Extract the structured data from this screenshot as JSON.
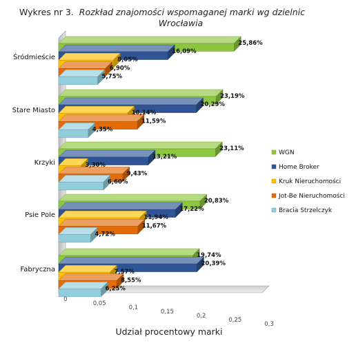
{
  "chart_data": {
    "type": "bar",
    "orientation": "horizontal",
    "three_d": true,
    "title_prefix": "Wykres nr 3.",
    "title_line1": "Rozkład znajomości wspomaganej marki wg dzielnic",
    "title_line2": "Wrocławia",
    "xlabel": "Udział procentowy marki",
    "ylabel": "",
    "xlim": [
      0,
      0.3
    ],
    "xticks": [
      "0",
      "0,05",
      "0,1",
      "0,15",
      "0,2",
      "0,25",
      "0,3"
    ],
    "legend_position": "right",
    "categories": [
      "Śródmieście",
      "Stare Miasto",
      "Krzyki",
      "Psie Pole",
      "Fabryczna"
    ],
    "series": [
      {
        "name": "WGN",
        "color": "#8DC63F",
        "values": [
          0.2586,
          0.2319,
          0.2311,
          0.2083,
          0.1974
        ],
        "labels": [
          "25,86%",
          "23,19%",
          "23,11%",
          "20,83%",
          "19,74%"
        ]
      },
      {
        "name": "Home Broker",
        "color": "#2F5597",
        "values": [
          0.1609,
          0.2029,
          0.1321,
          0.1722,
          0.2039
        ],
        "labels": [
          "16,09%",
          "20,29%",
          "13,21%",
          "17,22%",
          "20,39%"
        ]
      },
      {
        "name": "Kruk Nieruchomości",
        "color": "#FFC000",
        "values": [
          0.0805,
          0.1014,
          0.033,
          0.1194,
          0.0757
        ],
        "labels": [
          "8,05%",
          "10,14%",
          "3,30%",
          "11,94%",
          "7,57%"
        ]
      },
      {
        "name": "Jot-Be Nieruchomości",
        "color": "#E36C09",
        "values": [
          0.069,
          0.1159,
          0.0943,
          0.1167,
          0.0855
        ],
        "labels": [
          "6,90%",
          "11,59%",
          "9,43%",
          "11,67%",
          "8,55%"
        ]
      },
      {
        "name": "Bracia Strzelczyk",
        "color": "#92CDDC",
        "values": [
          0.0575,
          0.0435,
          0.066,
          0.0472,
          0.0625
        ],
        "labels": [
          "5,75%",
          "4,35%",
          "6,60%",
          "4,72%",
          "6,25%"
        ]
      }
    ],
    "grid": false
  }
}
